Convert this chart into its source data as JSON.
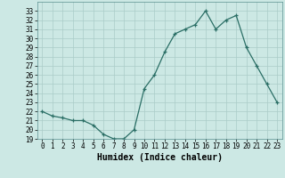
{
  "x": [
    0,
    1,
    2,
    3,
    4,
    5,
    6,
    7,
    8,
    9,
    10,
    11,
    12,
    13,
    14,
    15,
    16,
    17,
    18,
    19,
    20,
    21,
    22,
    23
  ],
  "y": [
    22,
    21.5,
    21.3,
    21,
    21,
    20.5,
    19.5,
    19,
    19,
    20,
    24.5,
    26,
    28.5,
    30.5,
    31,
    31.5,
    33,
    31,
    32,
    32.5,
    29,
    27,
    25,
    23
  ],
  "xlabel": "Humidex (Indice chaleur)",
  "xlim": [
    -0.5,
    23.5
  ],
  "ylim": [
    19,
    34
  ],
  "yticks": [
    19,
    20,
    21,
    22,
    23,
    24,
    25,
    26,
    27,
    28,
    29,
    30,
    31,
    32,
    33
  ],
  "xticks": [
    0,
    1,
    2,
    3,
    4,
    5,
    6,
    7,
    8,
    9,
    10,
    11,
    12,
    13,
    14,
    15,
    16,
    17,
    18,
    19,
    20,
    21,
    22,
    23
  ],
  "line_color": "#2a6e65",
  "bg_color": "#cce8e4",
  "grid_color": "#aaccc8",
  "xlabel_fontsize": 7,
  "tick_fontsize": 5.5
}
